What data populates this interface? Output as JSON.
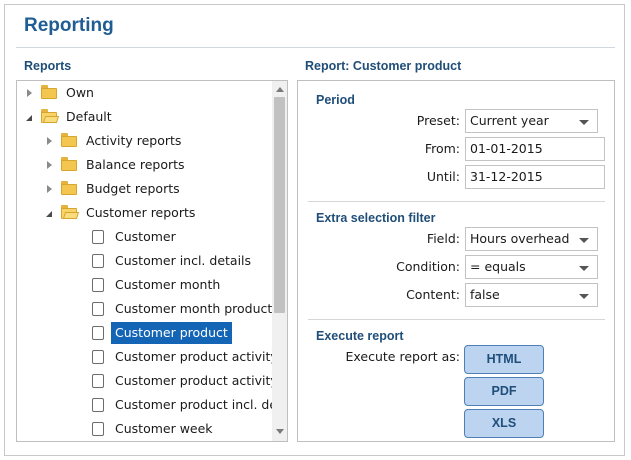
{
  "page": {
    "title": "Reporting"
  },
  "reports_panel": {
    "heading": "Reports",
    "tree": [
      {
        "label": "Own",
        "type": "folder",
        "state": "collapsed",
        "level": 0,
        "icon": "folder-icon"
      },
      {
        "label": "Default",
        "type": "folder",
        "state": "expanded",
        "level": 0,
        "icon": "folder-open-icon"
      },
      {
        "label": "Activity reports",
        "type": "folder",
        "state": "collapsed",
        "level": 1,
        "icon": "folder-icon"
      },
      {
        "label": "Balance reports",
        "type": "folder",
        "state": "collapsed",
        "level": 1,
        "icon": "folder-icon"
      },
      {
        "label": "Budget reports",
        "type": "folder",
        "state": "collapsed",
        "level": 1,
        "icon": "folder-icon"
      },
      {
        "label": "Customer reports",
        "type": "folder",
        "state": "expanded",
        "level": 1,
        "icon": "folder-open-icon"
      },
      {
        "label": "Customer",
        "type": "report",
        "level": 2,
        "icon": "report-icon"
      },
      {
        "label": "Customer incl. details",
        "type": "report",
        "level": 2,
        "icon": "report-icon"
      },
      {
        "label": "Customer month",
        "type": "report",
        "level": 2,
        "icon": "report-icon"
      },
      {
        "label": "Customer month product incl. details",
        "type": "report",
        "level": 2,
        "icon": "report-icon"
      },
      {
        "label": "Customer product",
        "type": "report",
        "level": 2,
        "selected": true,
        "icon": "report-icon"
      },
      {
        "label": "Customer product activity",
        "type": "report",
        "level": 2,
        "icon": "report-icon"
      },
      {
        "label": "Customer product activity incl. details",
        "type": "report",
        "level": 2,
        "icon": "report-icon"
      },
      {
        "label": "Customer product incl. details",
        "type": "report",
        "level": 2,
        "icon": "report-icon"
      },
      {
        "label": "Customer week",
        "type": "report",
        "level": 2,
        "icon": "report-icon"
      }
    ]
  },
  "report_panel": {
    "heading": "Report: Customer product",
    "period": {
      "heading": "Period",
      "preset_label": "Preset:",
      "preset_value": "Current year",
      "from_label": "From:",
      "from_value": "01-01-2015",
      "until_label": "Until:",
      "until_value": "31-12-2015"
    },
    "filter": {
      "heading": "Extra selection filter",
      "field_label": "Field:",
      "field_value": "Hours overhead",
      "condition_label": "Condition:",
      "condition_value": "= equals",
      "content_label": "Content:",
      "content_value": "false"
    },
    "execute": {
      "heading": "Execute report",
      "label": "Execute report as:",
      "buttons": [
        "HTML",
        "PDF",
        "XLS"
      ]
    }
  },
  "colors": {
    "accent": "#1f5d94",
    "selection": "#1565b7",
    "button_bg": "#bcd4f0"
  }
}
